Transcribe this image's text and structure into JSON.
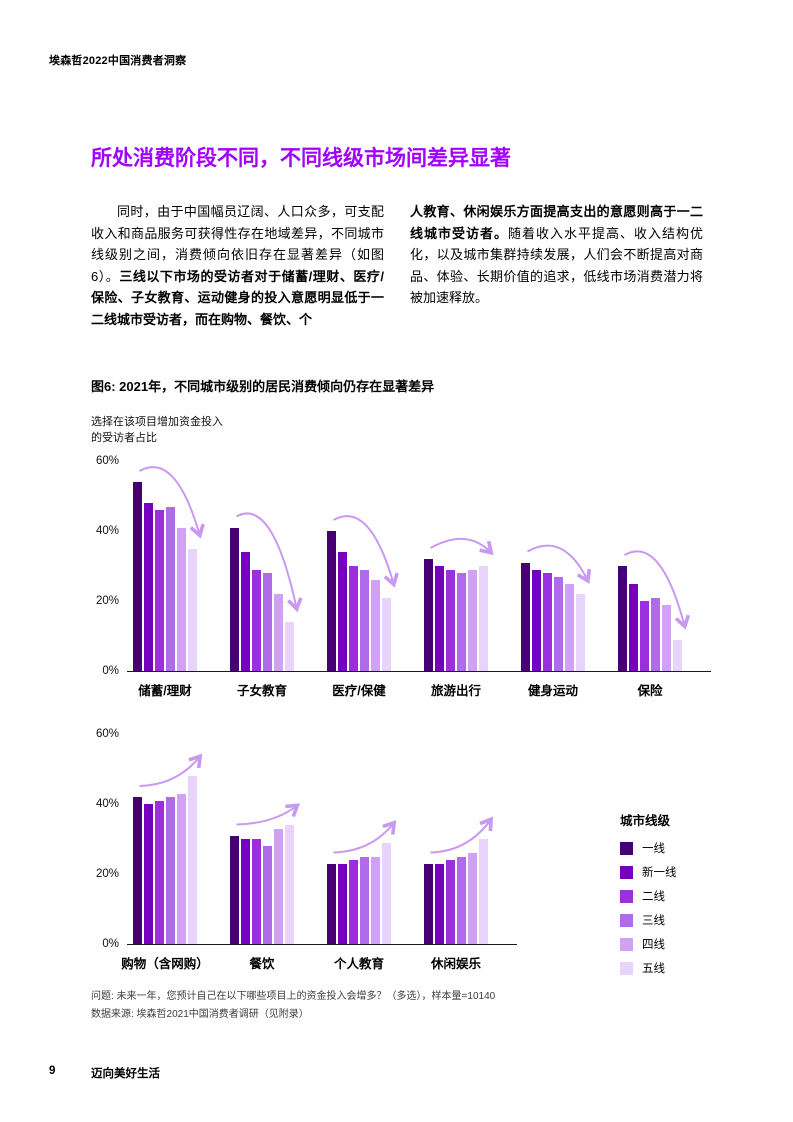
{
  "page": {
    "header": "埃森哲2022中国消费者洞察",
    "title": "所处消费阶段不同，不同线级市场间差异显著",
    "footer_page_number": "9",
    "footer_label": "迈向美好生活"
  },
  "body": {
    "left_regular": "同时，由于中国幅员辽阔、人口众多，可支配收入和商品服务可获得性存在地域差异，不同城市线级别之间，消费倾向依旧存在显著差异（如图6）。",
    "left_bold": "三线以下市场的受访者对于储蓄/理财、医疗/保险、子女教育、运动健身的投入意愿明显低于一二线城市受访者，而在购物、餐饮、个",
    "right_bold": "人教育、休闲娱乐方面提高支出的意愿则高于一二线城市受访者。",
    "right_regular": "随着收入水平提高、收入结构优化，以及城市集群持续发展，人们会不断提高对商品、体验、长期价值的追求，低线市场消费潜力将被加速释放。"
  },
  "figure": {
    "title": "图6: 2021年，不同城市级别的居民消费倾向仍存在显著差异",
    "axis_caption_line1": "选择在该项目增加资金投入",
    "axis_caption_line2": "的受访者占比",
    "footnote1": "问题: 未来一年，您预计自己在以下哪些项目上的资金投入会增多？（多选），样本量=10140",
    "footnote2": "数据来源: 埃森哲2021中国消费者调研（见附录）"
  },
  "legend": {
    "title": "城市线级",
    "items": [
      {
        "label": "一线",
        "color": "#460073"
      },
      {
        "label": "新一线",
        "color": "#7500c0"
      },
      {
        "label": "二线",
        "color": "#9b2fe0"
      },
      {
        "label": "三线",
        "color": "#b06ce8"
      },
      {
        "label": "四线",
        "color": "#d0a1f5"
      },
      {
        "label": "五线",
        "color": "#e8d4fb"
      }
    ]
  },
  "colors": {
    "accent": "#a100ff",
    "arrow": "#c998f2",
    "axis": "#1a1a1a",
    "series": [
      "#460073",
      "#7500c0",
      "#9b2fe0",
      "#b06ce8",
      "#d0a1f5",
      "#e8d4fb"
    ]
  },
  "chart_data": [
    {
      "type": "bar",
      "title": "图6: 2021年，不同城市级别的居民消费倾向仍存在显著差异",
      "ylabel": "选择在该项目增加资金投入的受访者占比",
      "ylim": [
        0,
        60
      ],
      "yticks": [
        "60%",
        "40%",
        "20%",
        "0%"
      ],
      "grid": false,
      "series_names": [
        "一线",
        "新一线",
        "二线",
        "三线",
        "四线",
        "五线"
      ],
      "categories": [
        "储蓄/理财",
        "子女教育",
        "医疗/保健",
        "旅游出行",
        "健身运动",
        "保险"
      ],
      "groups": [
        {
          "label": "储蓄/理财",
          "values": [
            54,
            48,
            46,
            47,
            41,
            35
          ],
          "trend": "down"
        },
        {
          "label": "子女教育",
          "values": [
            41,
            34,
            29,
            28,
            22,
            14
          ],
          "trend": "down"
        },
        {
          "label": "医疗/保健",
          "values": [
            40,
            34,
            30,
            29,
            26,
            21
          ],
          "trend": "down"
        },
        {
          "label": "旅游出行",
          "values": [
            32,
            30,
            29,
            28,
            29,
            30
          ],
          "trend": "down"
        },
        {
          "label": "健身运动",
          "values": [
            31,
            29,
            28,
            27,
            25,
            22
          ],
          "trend": "down"
        },
        {
          "label": "保险",
          "values": [
            30,
            25,
            20,
            21,
            19,
            9
          ],
          "trend": "down"
        }
      ]
    },
    {
      "type": "bar",
      "ylim": [
        0,
        60
      ],
      "yticks": [
        "60%",
        "40%",
        "20%",
        "0%"
      ],
      "grid": false,
      "series_names": [
        "一线",
        "新一线",
        "二线",
        "三线",
        "四线",
        "五线"
      ],
      "categories": [
        "购物（含网购）",
        "餐饮",
        "个人教育",
        "休闲娱乐"
      ],
      "groups": [
        {
          "label": "购物（含网购）",
          "values": [
            42,
            40,
            41,
            42,
            43,
            48
          ],
          "trend": "up"
        },
        {
          "label": "餐饮",
          "values": [
            31,
            30,
            30,
            28,
            33,
            34
          ],
          "trend": "up"
        },
        {
          "label": "个人教育",
          "values": [
            23,
            23,
            24,
            25,
            25,
            29
          ],
          "trend": "up"
        },
        {
          "label": "休闲娱乐",
          "values": [
            23,
            23,
            24,
            25,
            26,
            30
          ],
          "trend": "up"
        }
      ]
    }
  ]
}
